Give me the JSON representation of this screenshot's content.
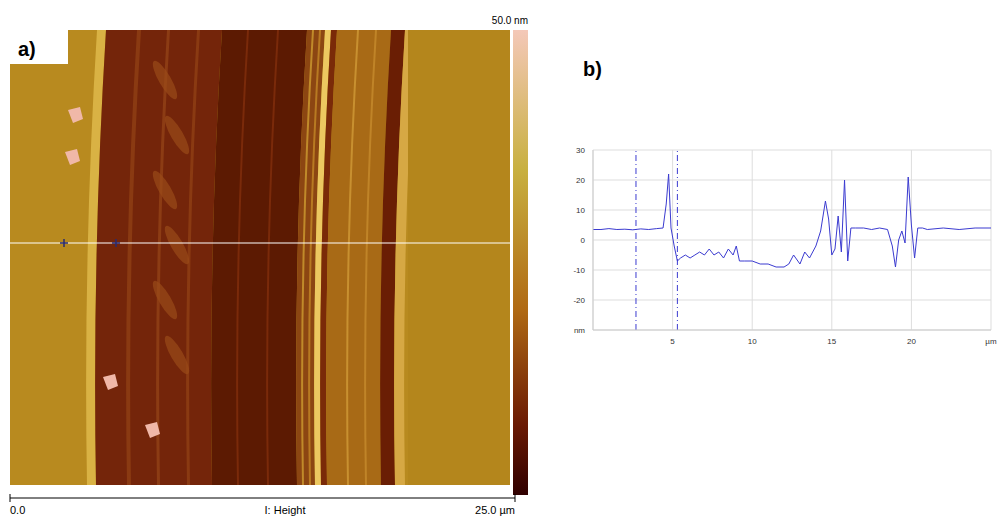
{
  "image": {
    "label": "a)",
    "colorbar_max": "50.0 nm",
    "scale_start": "0.0",
    "scale_title": "I: Height",
    "scale_end": "25.0 µm"
  },
  "chart_data": {
    "type": "line",
    "label": "b)",
    "x": [
      0,
      0.5,
      1,
      1.5,
      2,
      2.5,
      3,
      3.5,
      4,
      4.4,
      4.6,
      4.75,
      4.9,
      5.1,
      5.3,
      5.5,
      5.8,
      6.1,
      6.4,
      6.7,
      7,
      7.3,
      7.6,
      7.9,
      8.2,
      8.5,
      8.8,
      9,
      9.2,
      9.5,
      10,
      10.5,
      11,
      11.5,
      12,
      12.3,
      12.6,
      13,
      13.3,
      13.6,
      14,
      14.3,
      14.6,
      14.8,
      15,
      15.2,
      15.4,
      15.6,
      15.8,
      16,
      16.2,
      16.5,
      17,
      17.5,
      18,
      18.5,
      18.8,
      19,
      19.2,
      19.4,
      19.6,
      19.8,
      20,
      20.2,
      20.4,
      20.7,
      21,
      22,
      23,
      24,
      25
    ],
    "values": [
      3.5,
      3.5,
      3.8,
      3.5,
      3.6,
      3.4,
      3.7,
      3.5,
      3.8,
      4,
      12,
      22,
      4,
      -2,
      -7,
      -6,
      -5,
      -6,
      -5,
      -4,
      -5,
      -3,
      -5,
      -4,
      -6,
      -3,
      -5,
      -2,
      -7,
      -7,
      -7,
      -8,
      -8,
      -9,
      -9,
      -8,
      -5,
      -8,
      -4,
      -6,
      -2,
      3,
      13,
      7,
      -5,
      -3,
      8,
      -4,
      20,
      -7,
      4,
      4,
      4,
      3.5,
      4,
      3.5,
      -2,
      -9,
      0,
      3,
      -1,
      21,
      5,
      -6,
      4,
      4,
      3.5,
      4,
      3.5,
      4,
      4
    ],
    "color": "#3b3bd0",
    "vlines": [
      2.7,
      5.3
    ],
    "xlim": [
      0,
      25
    ],
    "xticks": [
      5,
      10,
      15,
      20,
      {
        "value": 25,
        "label": "µm"
      }
    ],
    "ylim": [
      -30,
      30
    ],
    "yticks": [
      {
        "value": -30,
        "label": "nm"
      },
      -20,
      -10,
      0,
      10,
      20,
      30
    ],
    "grid": true
  }
}
